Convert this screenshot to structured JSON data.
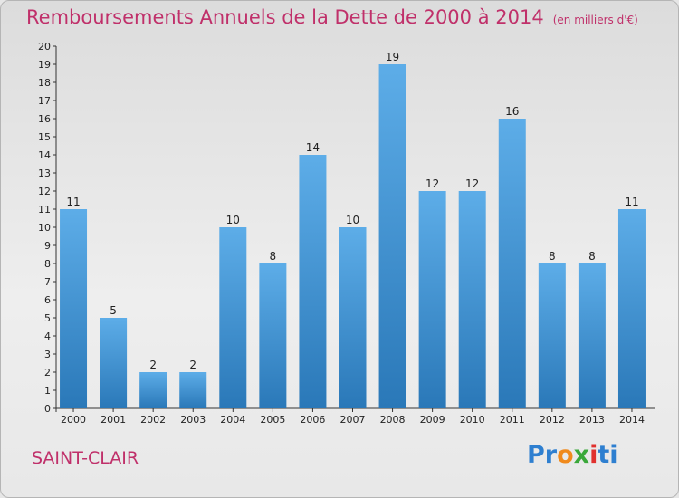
{
  "header": {
    "title": "Remboursements Annuels de la Dette de 2000 à 2014",
    "subtitle": "(en milliers d'€)"
  },
  "commune": "SAINT-CLAIR",
  "logo": {
    "text": "Proxiti",
    "parts": [
      "Pr",
      "o",
      "x",
      "i",
      "ti"
    ]
  },
  "colors": {
    "title": "#c0306a",
    "bar_top": "#5dade8",
    "bar_bottom": "#2a78b8",
    "axis": "#333333"
  },
  "chart_data": {
    "type": "bar",
    "title": "Remboursements Annuels de la Dette de 2000 à 2014",
    "subtitle": "(en milliers d'€)",
    "xlabel": "",
    "ylabel": "",
    "categories": [
      "2000",
      "2001",
      "2002",
      "2003",
      "2004",
      "2005",
      "2006",
      "2007",
      "2008",
      "2009",
      "2010",
      "2011",
      "2012",
      "2013",
      "2014"
    ],
    "values": [
      11,
      5,
      2,
      2,
      10,
      8,
      14,
      10,
      19,
      12,
      12,
      16,
      8,
      8,
      11
    ],
    "ylim": [
      0,
      20
    ],
    "yticks": [
      0,
      1,
      2,
      3,
      4,
      5,
      6,
      7,
      8,
      9,
      10,
      11,
      12,
      13,
      14,
      15,
      16,
      17,
      18,
      19,
      20
    ],
    "grid": false,
    "legend": "none"
  }
}
